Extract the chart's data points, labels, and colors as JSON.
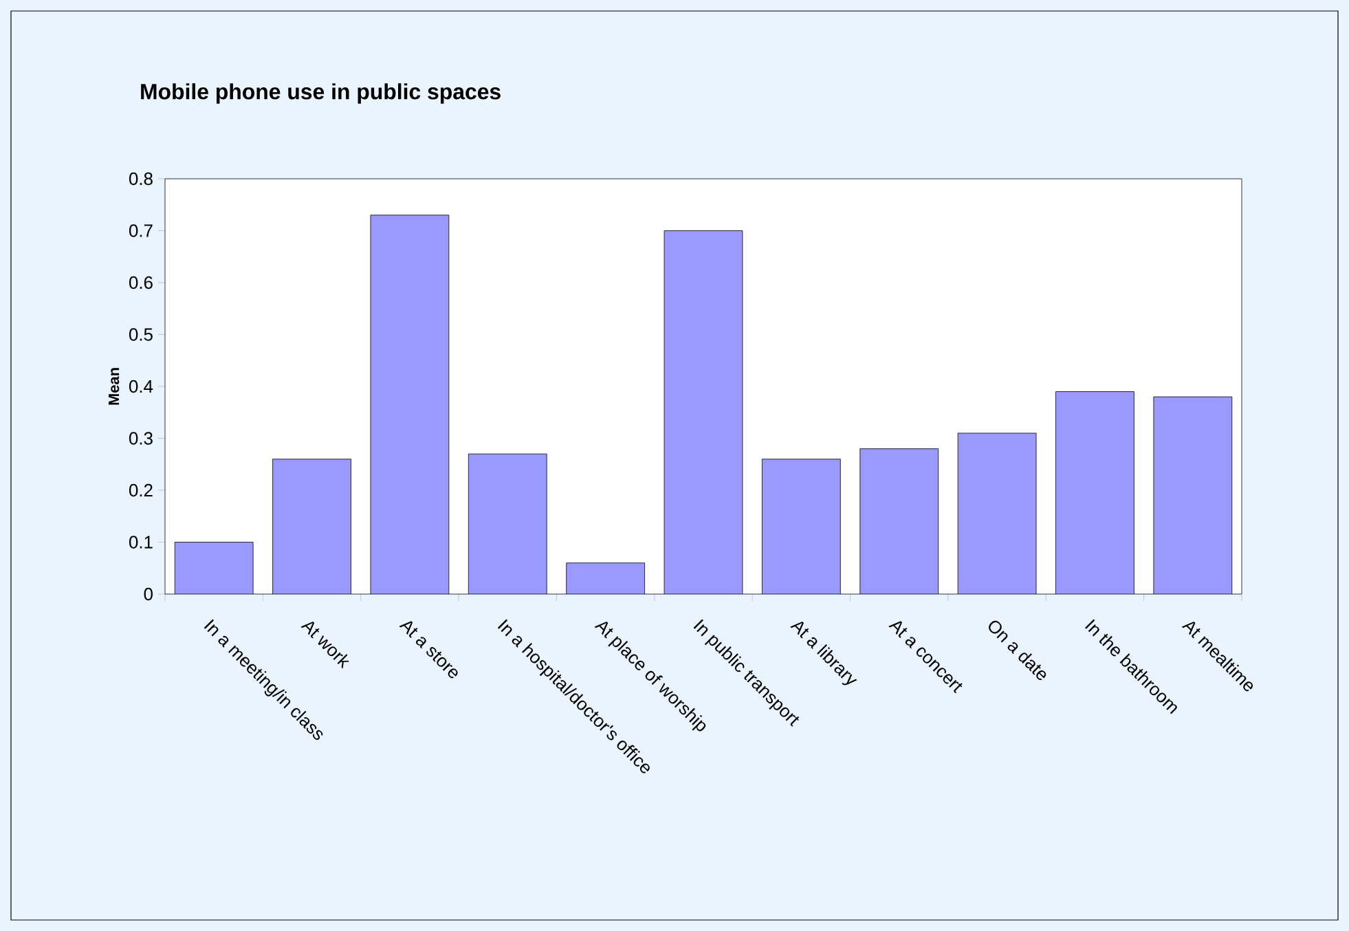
{
  "chart_data": {
    "type": "bar",
    "title": "Mobile phone use in public spaces",
    "ylabel": "Mean",
    "categories": [
      "In a meeting/in class",
      "At work",
      "At a store",
      "In a hospital/doctor's office",
      "At place of worship",
      "In public transport",
      "At a library",
      "At a concert",
      "On a date",
      "In the bathroom",
      "At mealtime"
    ],
    "values": [
      0.1,
      0.26,
      0.73,
      0.27,
      0.06,
      0.7,
      0.26,
      0.28,
      0.31,
      0.39,
      0.38
    ],
    "color": "#9999ff",
    "ylim": [
      0,
      0.8
    ],
    "yticks": [
      0,
      0.1,
      0.2,
      0.3,
      0.4,
      0.5,
      0.6,
      0.7,
      0.8
    ]
  }
}
